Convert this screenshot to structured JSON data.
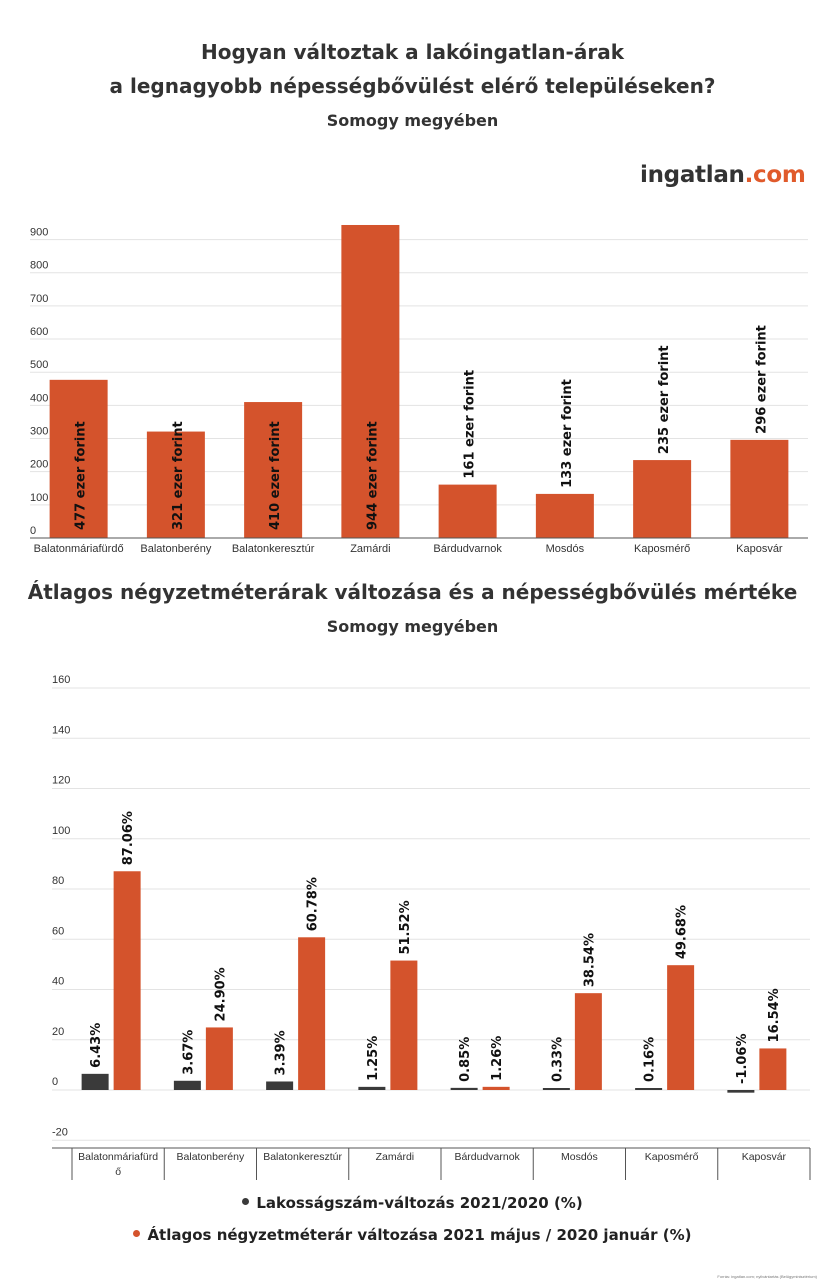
{
  "titles": {
    "chart1_line1": "Hogyan változtak a lakóingatlan-árak",
    "chart1_line2": "a legnagyobb népességbővülést elérő településeken?",
    "chart1_sub": "Somogy megyében",
    "chart2_line1": "Átlagos négyzetméterárak változása és a népességbővülés mértéke",
    "chart2_sub": "Somogy megyében"
  },
  "logo": {
    "main": "ingatlan",
    "suffix": ".com"
  },
  "colors": {
    "orange": "#d4532c",
    "dark": "#3a3a3a",
    "grid": "#e3e3e3"
  },
  "legend": {
    "item1": "Lakosságszám-változás 2021/2020 (%)",
    "item2": "Átlagos négyzetméterár változása 2021 május / 2020 január (%)"
  },
  "source": "Forrás: ingatlan.com; nyilvántartás (Belügyminisztérium)",
  "chart_data": [
    {
      "type": "bar",
      "title": "Hogyan változtak a lakóingatlan-árak a legnagyobb népességbővülést elérő településeken?",
      "subtitle": "Somogy megyében",
      "categories": [
        "Balatonmáriafürdő",
        "Balatonberény",
        "Balatonkeresztúr",
        "Zamárdi",
        "Bárdudvarnok",
        "Mosdós",
        "Kaposmérő",
        "Kaposvár"
      ],
      "values": [
        477,
        321,
        410,
        944,
        161,
        133,
        235,
        296
      ],
      "data_labels": [
        "477 ezer forint",
        "321 ezer forint",
        "410 ezer forint",
        "944 ezer forint",
        "161 ezer forint",
        "133 ezer forint",
        "235 ezer forint",
        "296 ezer forint"
      ],
      "yticks": [
        0,
        100,
        200,
        300,
        400,
        500,
        600,
        700,
        800,
        900
      ],
      "ylim": [
        0,
        950
      ],
      "grid": true
    },
    {
      "type": "bar",
      "title": "Átlagos négyzetméterárak változása és a népességbővülés mértéke",
      "subtitle": "Somogy megyében",
      "categories": [
        "Balatonmáriafürdő",
        "Balatonberény",
        "Balatonkeresztúr",
        "Zamárdi",
        "Bárdudvarnok",
        "Mosdós",
        "Kaposmérő",
        "Kaposvár"
      ],
      "series": [
        {
          "name": "Lakosságszám-változás 2021/2020 (%)",
          "values": [
            6.43,
            3.67,
            3.39,
            1.25,
            0.85,
            0.33,
            0.16,
            -1.06
          ],
          "labels": [
            "6.43%",
            "3.67%",
            "3.39%",
            "1.25%",
            "0.85%",
            "0.33%",
            "0.16%",
            "-1.06%"
          ]
        },
        {
          "name": "Átlagos négyzetméterár változása 2021 május / 2020 január (%)",
          "values": [
            87.06,
            24.9,
            60.78,
            51.52,
            1.26,
            38.54,
            49.68,
            16.54
          ],
          "labels": [
            "87.06%",
            "24.90%",
            "60.78%",
            "51.52%",
            "1.26%",
            "38.54%",
            "49.68%",
            "16.54%"
          ]
        }
      ],
      "yticks": [
        -20,
        0,
        20,
        40,
        60,
        80,
        100,
        120,
        140,
        160
      ],
      "ylim": [
        -20,
        160
      ],
      "grid": true,
      "legend": "bottom"
    }
  ]
}
